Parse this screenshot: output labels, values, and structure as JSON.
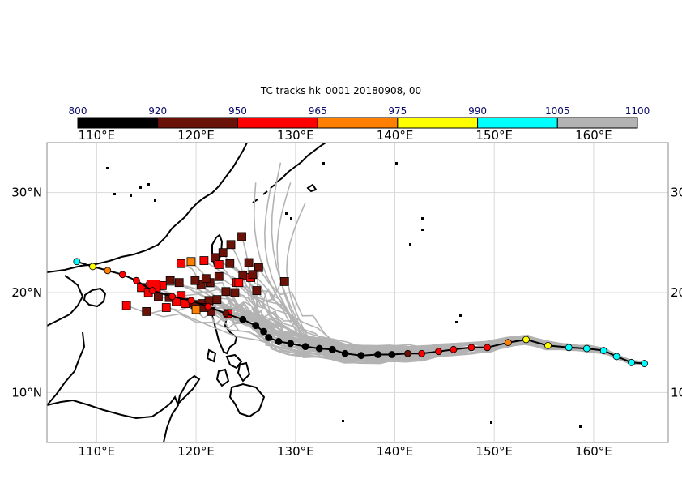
{
  "title": "TC tracks  hk_0001 20180908, 00",
  "colorbar": {
    "labels": [
      "800",
      "920",
      "950",
      "965",
      "975",
      "990",
      "1005",
      "1100"
    ],
    "colors": [
      "#000000",
      "#6b1208",
      "#ff0000",
      "#ff8000",
      "#ffff00",
      "#00ffff",
      "#b3b3b3"
    ]
  },
  "map": {
    "lon_range": [
      105,
      167.5
    ],
    "lat_range": [
      5,
      35
    ],
    "lon_ticks": [
      {
        "value": 110,
        "label": "110°E"
      },
      {
        "value": 120,
        "label": "120°E"
      },
      {
        "value": 130,
        "label": "130°E"
      },
      {
        "value": 140,
        "label": "140°E"
      },
      {
        "value": 150,
        "label": "150°E"
      },
      {
        "value": 160,
        "label": "160°E"
      }
    ],
    "lat_ticks": [
      {
        "value": 30,
        "label": "30°N",
        "right": "30"
      },
      {
        "value": 20,
        "label": "20°N",
        "right": "20"
      },
      {
        "value": 10,
        "label": "10°N",
        "right": "10"
      }
    ],
    "colors": {
      "ensemble": "#b3b3b3",
      "grid": "#d9d9d9",
      "coast": "#000000"
    }
  },
  "observed_track": [
    {
      "lon": 165.1,
      "lat": 12.9,
      "p": 1000
    },
    {
      "lon": 163.8,
      "lat": 13.0,
      "p": 1000
    },
    {
      "lon": 162.3,
      "lat": 13.6,
      "p": 1000
    },
    {
      "lon": 161.0,
      "lat": 14.2,
      "p": 1000
    },
    {
      "lon": 159.3,
      "lat": 14.4,
      "p": 1000
    },
    {
      "lon": 157.5,
      "lat": 14.5,
      "p": 1000
    },
    {
      "lon": 155.4,
      "lat": 14.7,
      "p": 985
    },
    {
      "lon": 153.2,
      "lat": 15.3,
      "p": 985
    },
    {
      "lon": 151.4,
      "lat": 15.0,
      "p": 970
    },
    {
      "lon": 149.3,
      "lat": 14.5,
      "p": 955
    },
    {
      "lon": 147.7,
      "lat": 14.5,
      "p": 955
    },
    {
      "lon": 145.9,
      "lat": 14.3,
      "p": 955
    },
    {
      "lon": 144.4,
      "lat": 14.1,
      "p": 955
    },
    {
      "lon": 142.7,
      "lat": 13.9,
      "p": 955
    },
    {
      "lon": 141.3,
      "lat": 13.9,
      "p": 940
    },
    {
      "lon": 139.7,
      "lat": 13.8,
      "p": 910
    },
    {
      "lon": 138.3,
      "lat": 13.8,
      "p": 910
    },
    {
      "lon": 136.6,
      "lat": 13.7,
      "p": 910
    },
    {
      "lon": 135.0,
      "lat": 13.9,
      "p": 910
    },
    {
      "lon": 133.7,
      "lat": 14.3,
      "p": 910
    },
    {
      "lon": 132.4,
      "lat": 14.4,
      "p": 910
    },
    {
      "lon": 131.0,
      "lat": 14.6,
      "p": 910
    },
    {
      "lon": 129.5,
      "lat": 14.9,
      "p": 910
    },
    {
      "lon": 128.3,
      "lat": 15.1,
      "p": 910
    },
    {
      "lon": 127.3,
      "lat": 15.5,
      "p": 910
    },
    {
      "lon": 126.8,
      "lat": 16.1,
      "p": 910
    },
    {
      "lon": 126.0,
      "lat": 16.7,
      "p": 910
    },
    {
      "lon": 124.7,
      "lat": 17.3,
      "p": 910
    },
    {
      "lon": 123.0,
      "lat": 17.9,
      "p": 940
    },
    {
      "lon": 121.2,
      "lat": 18.6,
      "p": 960
    },
    {
      "lon": 119.5,
      "lat": 19.2,
      "p": 955
    },
    {
      "lon": 117.6,
      "lat": 19.6,
      "p": 955
    },
    {
      "lon": 115.6,
      "lat": 20.2,
      "p": 955
    },
    {
      "lon": 114.0,
      "lat": 21.2,
      "p": 955
    },
    {
      "lon": 112.6,
      "lat": 21.8,
      "p": 960
    },
    {
      "lon": 111.1,
      "lat": 22.2,
      "p": 970
    },
    {
      "lon": 109.6,
      "lat": 22.6,
      "p": 985
    },
    {
      "lon": 108.0,
      "lat": 23.1,
      "p": 1000
    }
  ],
  "end_points": [
    {
      "lon": 124.6,
      "lat": 25.6,
      "p": 940
    },
    {
      "lon": 123.5,
      "lat": 24.8,
      "p": 940
    },
    {
      "lon": 122.7,
      "lat": 24.0,
      "p": 940
    },
    {
      "lon": 121.9,
      "lat": 23.5,
      "p": 940
    },
    {
      "lon": 120.8,
      "lat": 23.2,
      "p": 955
    },
    {
      "lon": 119.5,
      "lat": 23.1,
      "p": 970
    },
    {
      "lon": 118.5,
      "lat": 22.9,
      "p": 955
    },
    {
      "lon": 122.3,
      "lat": 22.8,
      "p": 955
    },
    {
      "lon": 123.4,
      "lat": 22.9,
      "p": 940
    },
    {
      "lon": 125.3,
      "lat": 23.0,
      "p": 940
    },
    {
      "lon": 126.3,
      "lat": 22.5,
      "p": 940
    },
    {
      "lon": 124.7,
      "lat": 21.7,
      "p": 940
    },
    {
      "lon": 125.5,
      "lat": 21.5,
      "p": 955
    },
    {
      "lon": 124.1,
      "lat": 21.0,
      "p": 955
    },
    {
      "lon": 122.3,
      "lat": 21.6,
      "p": 940
    },
    {
      "lon": 121.4,
      "lat": 21.0,
      "p": 940
    },
    {
      "lon": 120.5,
      "lat": 20.8,
      "p": 940
    },
    {
      "lon": 119.9,
      "lat": 21.2,
      "p": 940
    },
    {
      "lon": 118.3,
      "lat": 21.0,
      "p": 940
    },
    {
      "lon": 117.4,
      "lat": 21.2,
      "p": 940
    },
    {
      "lon": 116.6,
      "lat": 20.7,
      "p": 955
    },
    {
      "lon": 115.4,
      "lat": 20.6,
      "p": 955
    },
    {
      "lon": 114.5,
      "lat": 20.5,
      "p": 955
    },
    {
      "lon": 115.2,
      "lat": 20.0,
      "p": 955
    },
    {
      "lon": 116.2,
      "lat": 19.6,
      "p": 940
    },
    {
      "lon": 117.3,
      "lat": 19.5,
      "p": 940
    },
    {
      "lon": 118.5,
      "lat": 19.7,
      "p": 955
    },
    {
      "lon": 118.0,
      "lat": 19.1,
      "p": 955
    },
    {
      "lon": 119.4,
      "lat": 19.0,
      "p": 955
    },
    {
      "lon": 119.9,
      "lat": 18.8,
      "p": 940
    },
    {
      "lon": 120.6,
      "lat": 18.9,
      "p": 940
    },
    {
      "lon": 121.3,
      "lat": 19.2,
      "p": 940
    },
    {
      "lon": 122.1,
      "lat": 19.3,
      "p": 940
    },
    {
      "lon": 120.0,
      "lat": 18.3,
      "p": 970
    },
    {
      "lon": 118.9,
      "lat": 18.9,
      "p": 955
    },
    {
      "lon": 117.0,
      "lat": 18.5,
      "p": 955
    },
    {
      "lon": 115.0,
      "lat": 18.1,
      "p": 940
    },
    {
      "lon": 113.0,
      "lat": 18.7,
      "p": 955
    },
    {
      "lon": 123.2,
      "lat": 17.9,
      "p": 955
    },
    {
      "lon": 121.5,
      "lat": 18.1,
      "p": 940
    },
    {
      "lon": 120.8,
      "lat": 18.5,
      "p": 940
    },
    {
      "lon": 123.0,
      "lat": 20.1,
      "p": 940
    },
    {
      "lon": 123.9,
      "lat": 20.0,
      "p": 940
    },
    {
      "lon": 126.1,
      "lat": 20.2,
      "p": 940
    },
    {
      "lon": 128.9,
      "lat": 21.1,
      "p": 940
    },
    {
      "lon": 124.3,
      "lat": 21.0,
      "p": 955
    },
    {
      "lon": 121.0,
      "lat": 21.4,
      "p": 940
    },
    {
      "lon": 125.7,
      "lat": 21.8,
      "p": 940
    },
    {
      "lon": 116.0,
      "lat": 20.5,
      "p": 955
    }
  ],
  "dest_marker": {
    "lon": 115.7,
    "lat": 20.6,
    "p": 955
  }
}
